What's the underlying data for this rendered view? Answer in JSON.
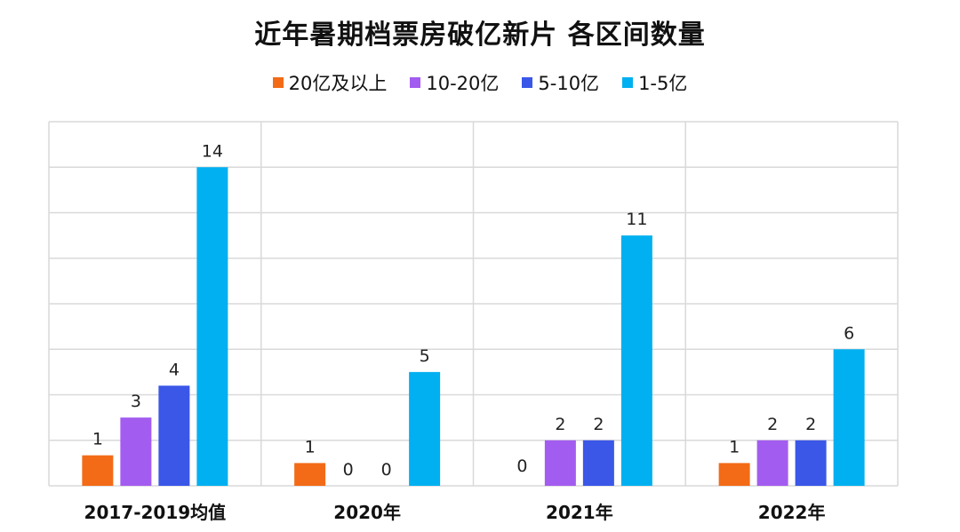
{
  "chart_data": {
    "type": "bar",
    "title": "近年暑期档票房破亿新片 各区间数量",
    "categories": [
      "2017-2019均值",
      "2020年",
      "2021年",
      "2022年"
    ],
    "series": [
      {
        "name": "20亿及以上",
        "color": "#F36B17",
        "values": [
          0.67,
          0.5,
          0,
          0.5
        ],
        "labels": [
          "1",
          "1",
          "",
          "1"
        ]
      },
      {
        "name": "10-20亿",
        "color": "#A35CF0",
        "values": [
          1.5,
          0,
          1,
          1
        ],
        "labels": [
          "3",
          "0",
          "2",
          "2"
        ]
      },
      {
        "name": "5-10亿",
        "color": "#3A57E8",
        "values": [
          2.2,
          0,
          1,
          1
        ],
        "labels": [
          "4",
          "0",
          "2",
          "2"
        ]
      },
      {
        "name": "1-5亿",
        "color": "#00B0F0",
        "values": [
          7,
          2.5,
          5.5,
          3
        ],
        "labels": [
          "14",
          "5",
          "11",
          "6"
        ]
      }
    ],
    "extra_labels": [
      {
        "category": "2021年",
        "series": "20亿及以上",
        "text": "0"
      }
    ],
    "ylim": [
      0,
      8
    ],
    "grid": true,
    "legend_position": "top"
  }
}
